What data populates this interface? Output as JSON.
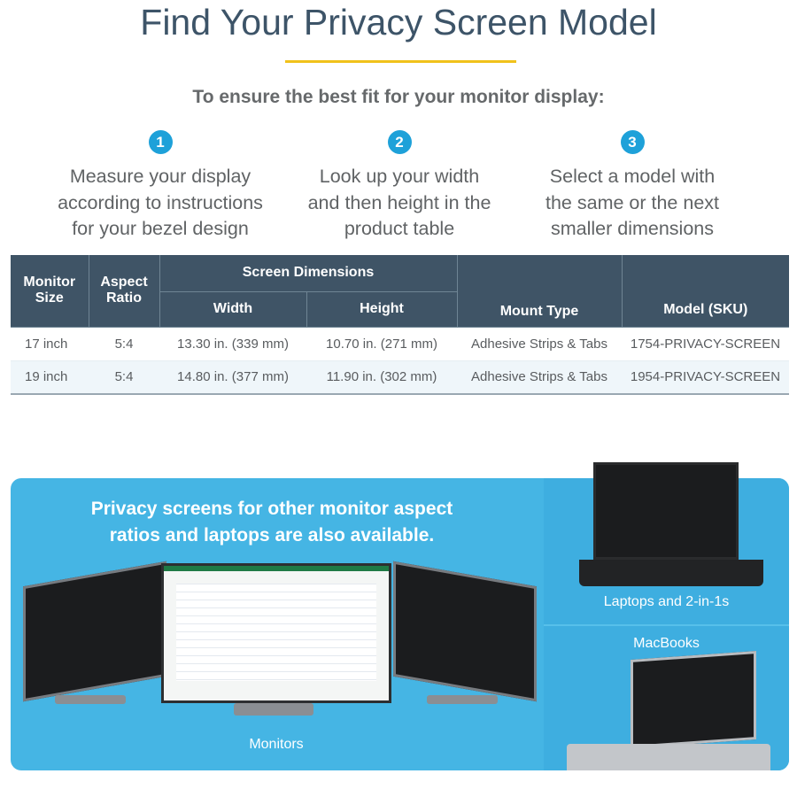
{
  "title": "Find Your Privacy Screen Model",
  "subtitle": "To ensure the best fit for your monitor display:",
  "steps": [
    {
      "number": "1",
      "lines": [
        "Measure your display",
        "according to instructions",
        "for your bezel design"
      ]
    },
    {
      "number": "2",
      "lines": [
        "Look up your width",
        "and then height in the",
        "product table"
      ]
    },
    {
      "number": "3",
      "lines": [
        "Select a model with",
        "the same or the next",
        "smaller dimensions"
      ]
    }
  ],
  "table": {
    "headers": {
      "monitor_size": "Monitor Size",
      "aspect_ratio": "Aspect Ratio",
      "screen_dimensions": "Screen Dimensions",
      "width": "Width",
      "height": "Height",
      "mount_type": "Mount Type",
      "model": "Model (SKU)"
    },
    "rows": [
      [
        "17 inch",
        "5:4",
        "13.30 in. (339 mm)",
        "10.70 in. (271 mm)",
        "Adhesive Strips & Tabs",
        "1754-PRIVACY-SCREEN"
      ],
      [
        "19 inch",
        "5:4",
        "14.80 in. (377 mm)",
        "11.90 in. (302 mm)",
        "Adhesive Strips & Tabs",
        "1954-PRIVACY-SCREEN"
      ]
    ]
  },
  "promo": {
    "text": "Privacy screens for other monitor aspect ratios and laptops are also available.",
    "monitors_label": "Monitors",
    "laptops_label": "Laptops and 2-in-1s",
    "macbooks_label": "MacBooks"
  },
  "colors": {
    "header": "#3f5466",
    "accent_yellow": "#f1c21b",
    "step_circle": "#1ea1d9",
    "panel_blue": "#45b5e4"
  }
}
